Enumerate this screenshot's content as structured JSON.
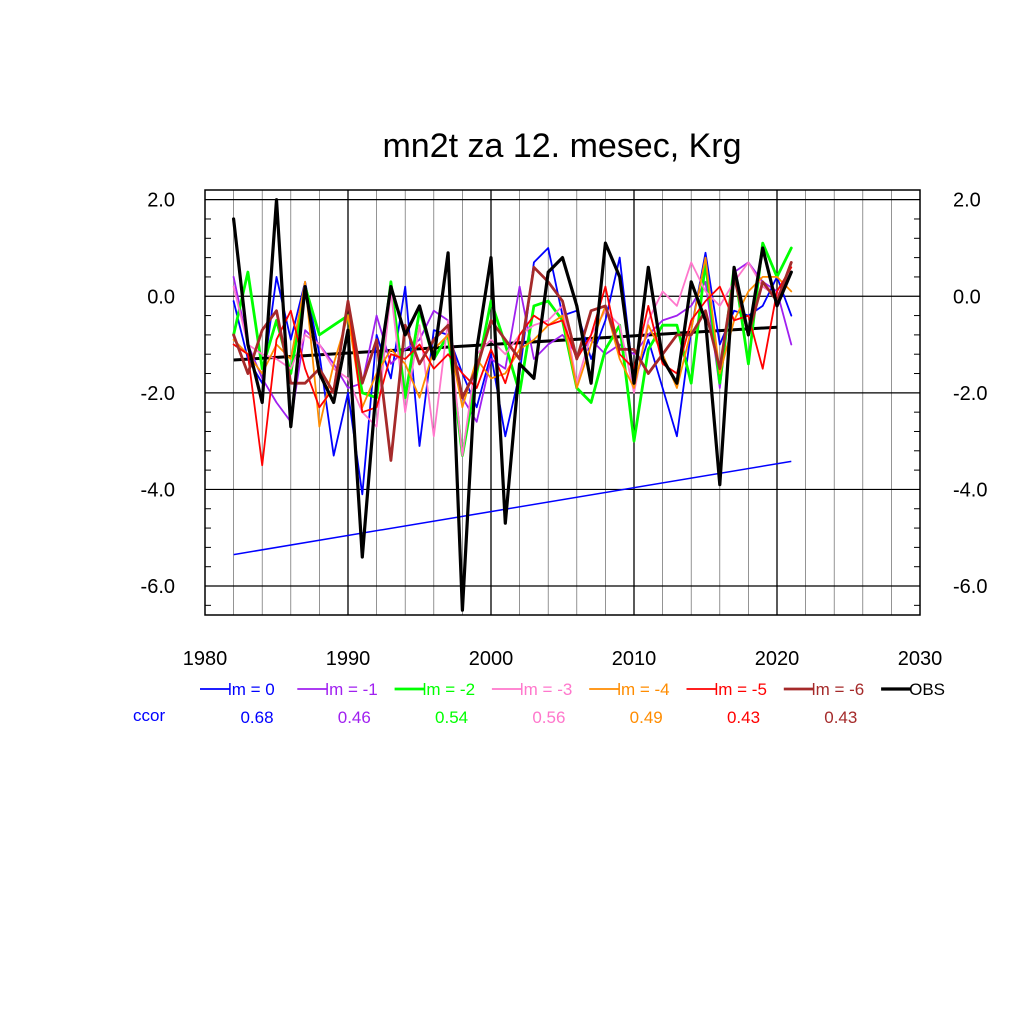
{
  "chart_data": {
    "type": "line",
    "title": "mn2t za 12. mesec, Krg",
    "xlim": [
      1980,
      2030
    ],
    "ylim": [
      -6.6,
      2.2
    ],
    "xticks": [
      1980,
      1990,
      2000,
      2010,
      2020,
      2030
    ],
    "xtick_labels": [
      "1980",
      "1990",
      "2000",
      "2010",
      "2020",
      "2030"
    ],
    "yticks": [
      2.0,
      0.0,
      -2.0,
      -4.0,
      -6.0
    ],
    "ytick_labels": [
      "2.0",
      "0.0",
      "-2.0",
      "-4.0",
      "-6.0"
    ],
    "grid": true,
    "x": [
      1982,
      1983,
      1984,
      1985,
      1986,
      1987,
      1988,
      1989,
      1990,
      1991,
      1992,
      1993,
      1994,
      1995,
      1996,
      1997,
      1998,
      1999,
      2000,
      2001,
      2002,
      2003,
      2004,
      2005,
      2006,
      2007,
      2008,
      2009,
      2010,
      2011,
      2012,
      2013,
      2014,
      2015,
      2016,
      2017,
      2018,
      2019,
      2020,
      2021
    ],
    "series": [
      {
        "name": "lm = 0",
        "color": "#0000ff",
        "width": 1.8,
        "values": [
          -0.1,
          -1.3,
          -1.8,
          0.4,
          -0.9,
          0.3,
          -1.2,
          -3.3,
          -2.0,
          -4.1,
          -0.8,
          -1.7,
          0.2,
          -3.1,
          -0.7,
          -0.8,
          -1.6,
          -2.3,
          -1.2,
          -2.9,
          -1.6,
          0.7,
          1.0,
          -0.4,
          -0.3,
          -1.3,
          -0.5,
          0.8,
          -1.8,
          -0.9,
          -1.9,
          -2.9,
          -0.7,
          0.9,
          -1.0,
          -0.3,
          -0.4,
          -0.2,
          0.4,
          -0.4
        ]
      },
      {
        "name": "lm = -1",
        "color": "#a020f0",
        "width": 1.8,
        "values": [
          0.4,
          -1.0,
          -1.7,
          -2.2,
          -2.6,
          -0.7,
          -1.0,
          -1.4,
          -1.9,
          -1.8,
          -0.4,
          -1.4,
          -1.1,
          -0.9,
          -0.3,
          -0.5,
          -2.1,
          -2.6,
          -1.3,
          -1.5,
          0.2,
          -1.3,
          -1.0,
          -0.8,
          -1.2,
          -0.9,
          -1.2,
          -1.0,
          -1.2,
          -0.8,
          -0.5,
          -0.4,
          -0.2,
          0.3,
          -1.9,
          0.5,
          0.7,
          0.3,
          0.1,
          -1.0
        ]
      },
      {
        "name": "lm = -2",
        "color": "#00ff00",
        "width": 2.8,
        "values": [
          -0.8,
          0.5,
          -1.5,
          -0.5,
          -1.6,
          0.2,
          -0.8,
          -0.6,
          -0.4,
          -2.0,
          -2.1,
          0.3,
          -2.1,
          -0.3,
          -1.3,
          -0.8,
          -3.3,
          -1.6,
          -0.1,
          -1.0,
          -2.0,
          -0.2,
          -0.1,
          -0.5,
          -1.9,
          -2.2,
          -1.1,
          -0.6,
          -3.0,
          -1.1,
          -0.6,
          -0.6,
          -1.8,
          0.7,
          -1.8,
          0.6,
          -1.4,
          1.1,
          0.4,
          1.0
        ]
      },
      {
        "name": "lm = -3",
        "color": "#ff77cc",
        "width": 1.8,
        "values": [
          0.2,
          -1.0,
          -1.2,
          -1.3,
          -1.5,
          -0.8,
          -1.0,
          -1.5,
          -1.7,
          -2.4,
          -2.7,
          0.1,
          -2.4,
          -0.6,
          -2.9,
          -0.5,
          -3.3,
          -1.2,
          -0.9,
          -1.2,
          -0.8,
          -0.6,
          -0.5,
          -0.2,
          -1.8,
          -0.8,
          -0.3,
          -0.6,
          -2.0,
          -0.5,
          0.1,
          -0.2,
          0.7,
          0.1,
          -0.2,
          0.3,
          0.7,
          0.2,
          0.0,
          0.5
        ]
      },
      {
        "name": "lm = -4",
        "color": "#ff8c00",
        "width": 1.8,
        "values": [
          -0.9,
          -1.2,
          -1.6,
          -1.0,
          -1.3,
          0.3,
          -2.7,
          -1.4,
          -0.4,
          -2.3,
          -1.6,
          -1.1,
          -1.4,
          -2.1,
          -1.1,
          -0.8,
          -2.3,
          -1.3,
          -1.7,
          -1.6,
          -1.1,
          -0.9,
          -0.6,
          -0.4,
          -1.9,
          -1.0,
          -0.2,
          -1.3,
          -1.9,
          -0.6,
          -1.2,
          -1.9,
          -0.7,
          0.8,
          -1.6,
          -0.5,
          0.1,
          0.4,
          0.4,
          0.1
        ]
      },
      {
        "name": "lm = -5",
        "color": "#ff0000",
        "width": 1.8,
        "values": [
          -1.0,
          -1.2,
          -3.5,
          -0.9,
          -0.3,
          -1.5,
          -2.3,
          -1.9,
          -0.1,
          -2.4,
          -2.3,
          -1.2,
          -1.3,
          -1.0,
          -1.5,
          -1.2,
          -1.6,
          -1.9,
          -1.1,
          -1.8,
          -0.8,
          -0.4,
          -0.6,
          -0.5,
          -1.3,
          -0.8,
          0.2,
          -1.2,
          -1.5,
          -0.2,
          -1.4,
          -1.6,
          -0.5,
          -0.1,
          0.2,
          -0.5,
          -0.4,
          -1.5,
          0.1,
          0.6
        ]
      },
      {
        "name": "lm = -6",
        "color": "#a52a2a",
        "width": 2.8,
        "values": [
          -0.8,
          -1.6,
          -0.7,
          -0.3,
          -1.8,
          -1.8,
          -1.5,
          -2.0,
          -0.1,
          -1.8,
          -0.9,
          -3.4,
          -0.6,
          -1.4,
          -0.9,
          -0.6,
          -2.1,
          -1.5,
          -0.5,
          -0.9,
          -1.3,
          0.6,
          0.3,
          -0.1,
          -1.3,
          -0.3,
          -0.2,
          -1.1,
          -1.1,
          -1.6,
          -1.2,
          -0.8,
          -0.8,
          -0.3,
          -1.5,
          0.4,
          -0.8,
          0.3,
          -0.1,
          0.7
        ]
      },
      {
        "name": "OBS",
        "color": "#000000",
        "width": 3.2,
        "values": [
          1.6,
          -1.0,
          -2.2,
          2.0,
          -2.7,
          0.2,
          -1.6,
          -2.2,
          -0.7,
          -5.4,
          -1.8,
          0.2,
          -0.8,
          -0.2,
          -1.3,
          0.9,
          -6.5,
          -1.1,
          0.8,
          -4.7,
          -1.4,
          -1.7,
          0.5,
          0.8,
          -0.2,
          -1.8,
          1.1,
          0.4,
          -1.8,
          0.6,
          -1.3,
          -1.8,
          0.3,
          -0.5,
          -3.9,
          0.6,
          -0.8,
          1.0,
          -0.2,
          0.5
        ]
      }
    ],
    "trend_lines": [
      {
        "name": "lm = 0 trend",
        "color": "#0000ff",
        "width": 1.5,
        "x": [
          1982,
          2021
        ],
        "values": [
          -5.35,
          -3.42
        ]
      },
      {
        "name": "OBS trend",
        "color": "#000000",
        "width": 3,
        "x": [
          1982,
          2020
        ],
        "values": [
          -1.32,
          -0.64
        ]
      }
    ],
    "legend": {
      "placement": "bottom",
      "entries": [
        "lm = 0",
        "lm = -1",
        "lm = -2",
        "lm = -3",
        "lm = -4",
        "lm = -5",
        "lm = -6",
        "OBS"
      ],
      "ccor_label": "ccor",
      "ccor_label_color": "#0000ff",
      "ccor_values": [
        "0.68",
        "0.46",
        "0.54",
        "0.56",
        "0.49",
        "0.43",
        "0.43"
      ]
    }
  }
}
